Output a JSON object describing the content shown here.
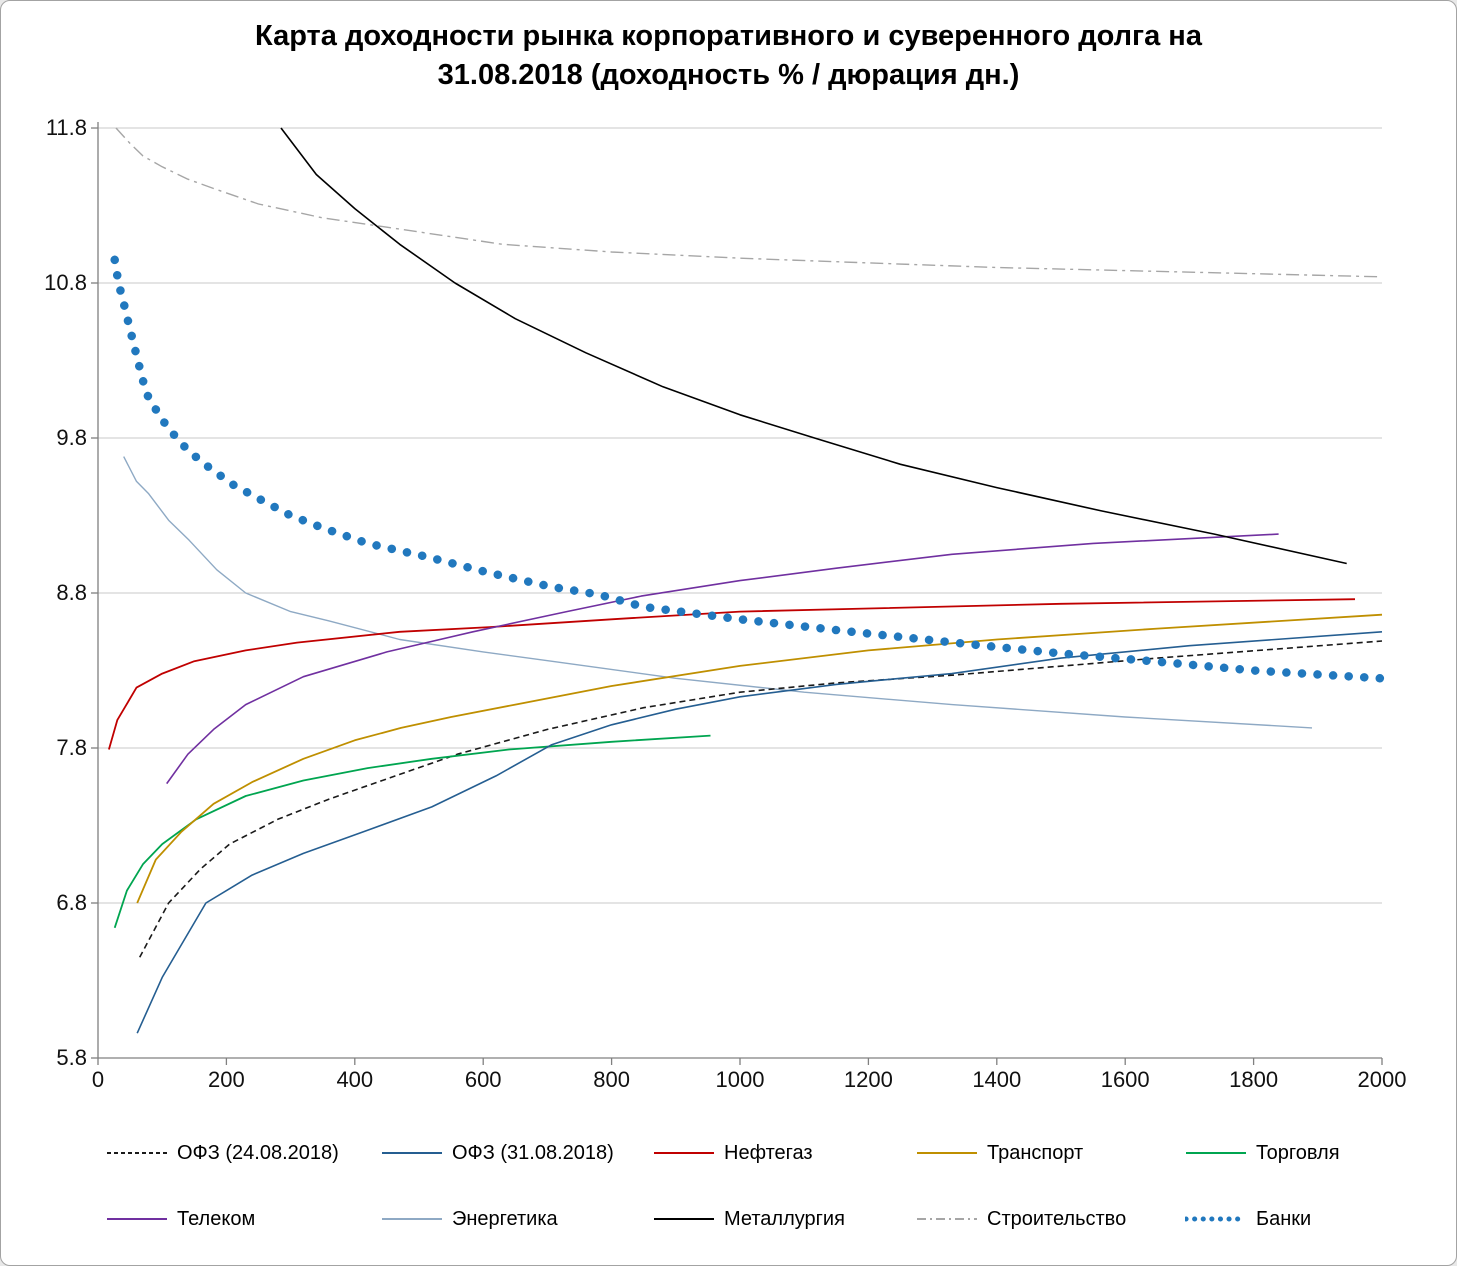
{
  "chart_data": {
    "type": "line",
    "title": "Карта доходности рынка корпоративного и суверенного долга на 31.08.2018 (доходность % / дюрация дн.)",
    "title_lines": [
      "Карта доходности рынка корпоративного и суверенного долга на",
      "31.08.2018 (доходность % / дюрация дн.)"
    ],
    "xlabel": "",
    "ylabel": "",
    "xlim": [
      0,
      2000
    ],
    "ylim": [
      5.8,
      11.8
    ],
    "x_ticks": [
      0,
      200,
      400,
      600,
      800,
      1000,
      1200,
      1400,
      1600,
      1800,
      2000
    ],
    "y_ticks": [
      5.8,
      6.8,
      7.8,
      8.8,
      9.8,
      10.8,
      11.8
    ],
    "grid": true,
    "grid_color": "#c8c8c8",
    "axis_color": "#808080",
    "legend_position": "bottom",
    "legend_rows": [
      [
        "ОФЗ (24.08.2018)",
        "ОФЗ (31.08.2018)",
        "Нефтегаз",
        "Транспорт",
        "Торговля"
      ],
      [
        "Телеком",
        "Энергетика",
        "Металлургия",
        "Строительство",
        "Банки"
      ]
    ],
    "series": [
      {
        "name": "ОФЗ (24.08.2018)",
        "color": "#1a1a1a",
        "style": "dashed",
        "width": 1.6,
        "points": [
          [
            65,
            6.45
          ],
          [
            110,
            6.8
          ],
          [
            160,
            7.02
          ],
          [
            205,
            7.18
          ],
          [
            280,
            7.34
          ],
          [
            360,
            7.47
          ],
          [
            470,
            7.63
          ],
          [
            560,
            7.76
          ],
          [
            700,
            7.92
          ],
          [
            850,
            8.06
          ],
          [
            1000,
            8.16
          ],
          [
            1150,
            8.22
          ],
          [
            1330,
            8.27
          ],
          [
            1650,
            8.38
          ],
          [
            2000,
            8.49
          ]
        ]
      },
      {
        "name": "ОФЗ (31.08.2018)",
        "color": "#255E91",
        "style": "solid",
        "width": 1.6,
        "points": [
          [
            61,
            5.96
          ],
          [
            100,
            6.32
          ],
          [
            168,
            6.8
          ],
          [
            240,
            6.98
          ],
          [
            320,
            7.12
          ],
          [
            420,
            7.27
          ],
          [
            520,
            7.42
          ],
          [
            620,
            7.62
          ],
          [
            706,
            7.82
          ],
          [
            800,
            7.95
          ],
          [
            900,
            8.05
          ],
          [
            1000,
            8.13
          ],
          [
            1150,
            8.21
          ],
          [
            1250,
            8.25
          ],
          [
            1330,
            8.28
          ],
          [
            1500,
            8.38
          ],
          [
            1700,
            8.46
          ],
          [
            2000,
            8.55
          ]
        ]
      },
      {
        "name": "Нефтегаз",
        "color": "#C00000",
        "style": "solid",
        "width": 1.8,
        "points": [
          [
            17,
            7.79
          ],
          [
            30,
            7.98
          ],
          [
            60,
            8.19
          ],
          [
            100,
            8.28
          ],
          [
            150,
            8.36
          ],
          [
            230,
            8.43
          ],
          [
            310,
            8.48
          ],
          [
            470,
            8.55
          ],
          [
            610,
            8.58
          ],
          [
            800,
            8.63
          ],
          [
            1000,
            8.68
          ],
          [
            1200,
            8.7
          ],
          [
            1500,
            8.73
          ],
          [
            1958,
            8.76
          ]
        ]
      },
      {
        "name": "Транспорт",
        "color": "#BF8F00",
        "style": "solid",
        "width": 1.8,
        "points": [
          [
            61,
            6.8
          ],
          [
            90,
            7.08
          ],
          [
            130,
            7.26
          ],
          [
            180,
            7.44
          ],
          [
            240,
            7.58
          ],
          [
            320,
            7.73
          ],
          [
            400,
            7.85
          ],
          [
            472,
            7.93
          ],
          [
            550,
            8.0
          ],
          [
            650,
            8.08
          ],
          [
            800,
            8.2
          ],
          [
            1000,
            8.33
          ],
          [
            1200,
            8.43
          ],
          [
            1400,
            8.5
          ],
          [
            1650,
            8.57
          ],
          [
            2000,
            8.66
          ]
        ]
      },
      {
        "name": "Торговля",
        "color": "#00A550",
        "style": "solid",
        "width": 1.8,
        "points": [
          [
            26,
            6.64
          ],
          [
            45,
            6.88
          ],
          [
            70,
            7.05
          ],
          [
            100,
            7.18
          ],
          [
            153,
            7.34
          ],
          [
            230,
            7.49
          ],
          [
            320,
            7.59
          ],
          [
            420,
            7.67
          ],
          [
            520,
            7.73
          ],
          [
            640,
            7.79
          ],
          [
            800,
            7.84
          ],
          [
            954,
            7.88
          ]
        ]
      },
      {
        "name": "Телеком",
        "color": "#7030A0",
        "style": "solid",
        "width": 1.6,
        "points": [
          [
            107,
            7.57
          ],
          [
            140,
            7.76
          ],
          [
            180,
            7.92
          ],
          [
            230,
            8.08
          ],
          [
            320,
            8.26
          ],
          [
            450,
            8.42
          ],
          [
            584,
            8.55
          ],
          [
            730,
            8.68
          ],
          [
            846,
            8.78
          ],
          [
            1000,
            8.88
          ],
          [
            1150,
            8.96
          ],
          [
            1330,
            9.05
          ],
          [
            1550,
            9.12
          ],
          [
            1839,
            9.18
          ]
        ]
      },
      {
        "name": "Энергетика",
        "color": "#8EA9C4",
        "style": "solid",
        "width": 1.4,
        "points": [
          [
            40,
            9.68
          ],
          [
            60,
            9.52
          ],
          [
            79,
            9.44
          ],
          [
            110,
            9.27
          ],
          [
            142,
            9.14
          ],
          [
            185,
            8.95
          ],
          [
            230,
            8.8
          ],
          [
            300,
            8.68
          ],
          [
            360,
            8.62
          ],
          [
            470,
            8.5
          ],
          [
            600,
            8.42
          ],
          [
            706,
            8.36
          ],
          [
            900,
            8.25
          ],
          [
            1100,
            8.16
          ],
          [
            1330,
            8.08
          ],
          [
            1600,
            8.0
          ],
          [
            1891,
            7.93
          ]
        ]
      },
      {
        "name": "Металлургия",
        "color": "#000000",
        "style": "solid",
        "width": 1.6,
        "points": [
          [
            285,
            11.8
          ],
          [
            340,
            11.5
          ],
          [
            400,
            11.28
          ],
          [
            470,
            11.05
          ],
          [
            556,
            10.8
          ],
          [
            650,
            10.57
          ],
          [
            760,
            10.35
          ],
          [
            880,
            10.13
          ],
          [
            1000,
            9.95
          ],
          [
            1116,
            9.8
          ],
          [
            1250,
            9.63
          ],
          [
            1400,
            9.48
          ],
          [
            1563,
            9.33
          ],
          [
            1739,
            9.18
          ],
          [
            1945,
            8.99
          ]
        ]
      },
      {
        "name": "Строительство",
        "color": "#A6A6A6",
        "style": "dashdot",
        "width": 1.4,
        "points": [
          [
            28,
            11.8
          ],
          [
            50,
            11.7
          ],
          [
            70,
            11.62
          ],
          [
            100,
            11.55
          ],
          [
            140,
            11.47
          ],
          [
            180,
            11.41
          ],
          [
            250,
            11.31
          ],
          [
            350,
            11.22
          ],
          [
            450,
            11.16
          ],
          [
            630,
            11.05
          ],
          [
            800,
            11.0
          ],
          [
            1000,
            10.96
          ],
          [
            1200,
            10.93
          ],
          [
            1400,
            10.9
          ],
          [
            1600,
            10.88
          ],
          [
            1800,
            10.86
          ],
          [
            1997,
            10.84
          ]
        ]
      },
      {
        "name": "Банки",
        "color": "#2178BE",
        "style": "dots",
        "width": 8.5,
        "points": [
          [
            26,
            10.95
          ],
          [
            32,
            10.8
          ],
          [
            40,
            10.67
          ],
          [
            50,
            10.5
          ],
          [
            62,
            10.3
          ],
          [
            75,
            10.09
          ],
          [
            95,
            9.95
          ],
          [
            110,
            9.86
          ],
          [
            140,
            9.72
          ],
          [
            173,
            9.61
          ],
          [
            210,
            9.5
          ],
          [
            250,
            9.41
          ],
          [
            300,
            9.3
          ],
          [
            350,
            9.22
          ],
          [
            420,
            9.12
          ],
          [
            516,
            9.03
          ],
          [
            610,
            8.93
          ],
          [
            706,
            8.84
          ],
          [
            780,
            8.79
          ],
          [
            850,
            8.71
          ],
          [
            1000,
            8.63
          ],
          [
            1174,
            8.55
          ],
          [
            1356,
            8.47
          ],
          [
            1500,
            8.41
          ],
          [
            1642,
            8.36
          ],
          [
            1800,
            8.3
          ],
          [
            1997,
            8.25
          ]
        ]
      }
    ]
  }
}
